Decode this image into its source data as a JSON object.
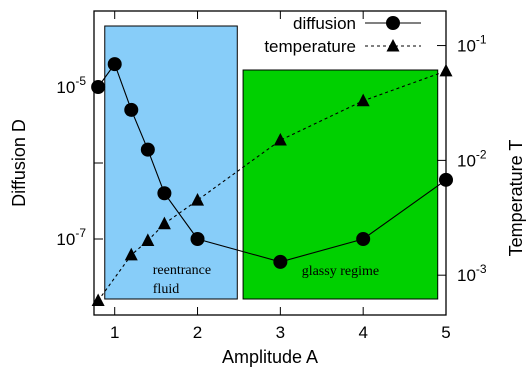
{
  "chart_data": {
    "type": "line",
    "xlabel": "Amplitude A",
    "ylabel_left": "Diffusion D",
    "ylabel_right": "Temperature T",
    "xlim": [
      0.75,
      5.0
    ],
    "ylim_left": [
      1e-08,
      0.0001
    ],
    "ylim_right": [
      0.00045,
      0.2
    ],
    "yscale_left": "log",
    "yscale_right": "log",
    "xticks": [
      {
        "value": 1,
        "label": "1"
      },
      {
        "value": 2,
        "label": "2"
      },
      {
        "value": 3,
        "label": "3"
      },
      {
        "value": 4,
        "label": "4"
      },
      {
        "value": 5,
        "label": "5"
      }
    ],
    "yticks_left": [
      {
        "value": 1e-07,
        "base": "10",
        "exp": "-7"
      },
      {
        "value": 1e-05,
        "base": "10",
        "exp": "-5"
      }
    ],
    "yticks_right": [
      {
        "value": 0.001,
        "base": "10",
        "exp": "-3"
      },
      {
        "value": 0.01,
        "base": "10",
        "exp": "-2"
      },
      {
        "value": 0.1,
        "base": "10",
        "exp": "-1"
      }
    ],
    "legend_position": "top-right",
    "series": [
      {
        "name": "diffusion",
        "axis": "left",
        "marker": "circle",
        "line": "solid",
        "x": [
          0.8,
          1.0,
          1.2,
          1.4,
          1.6,
          2.0,
          3.0,
          4.0,
          5.0
        ],
        "y": [
          1e-05,
          2e-05,
          5e-06,
          1.5e-06,
          4e-07,
          1e-07,
          5e-08,
          1e-07,
          6e-07
        ]
      },
      {
        "name": "temperature",
        "axis": "right",
        "marker": "triangle",
        "line": "dashed",
        "x": [
          0.8,
          1.2,
          1.4,
          1.6,
          2.0,
          3.0,
          4.0,
          5.0
        ],
        "y": [
          0.0006,
          0.0015,
          0.002,
          0.0028,
          0.0045,
          0.015,
          0.033,
          0.06
        ]
      }
    ],
    "regions": [
      {
        "label": [
          "reentrance",
          "fluid"
        ],
        "x": [
          0.88,
          2.48
        ],
        "color": "#87cdf9"
      },
      {
        "label": [
          "glassy regime"
        ],
        "x": [
          2.55,
          4.9
        ],
        "color": "#00d000"
      }
    ]
  }
}
